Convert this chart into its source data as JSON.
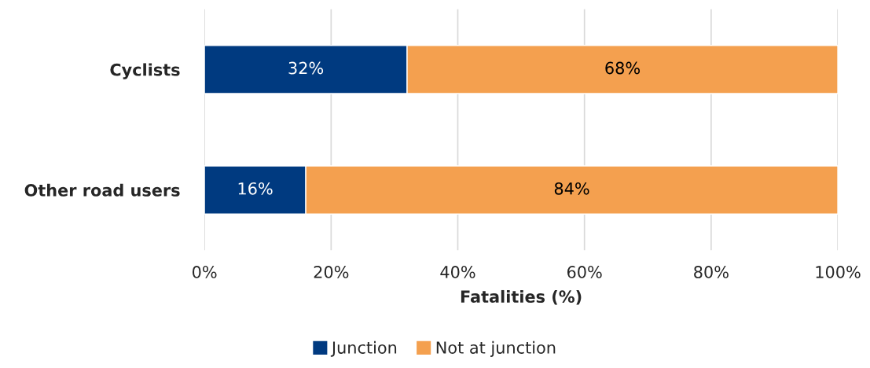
{
  "chart_data": {
    "type": "bar",
    "orientation": "horizontal",
    "stacked": true,
    "xlabel": "Fatalities (%)",
    "categories": [
      "Cyclists",
      "Other road users"
    ],
    "series": [
      {
        "name": "Junction",
        "color": "#003a80",
        "values": [
          32,
          16
        ],
        "value_labels": [
          "32%",
          "16%"
        ]
      },
      {
        "name": "Not at junction",
        "color": "#f4a04f",
        "values": [
          68,
          84
        ],
        "value_labels": [
          "68%",
          "84%"
        ]
      }
    ],
    "xlim": [
      0,
      100
    ],
    "xticks": [
      {
        "value": 0,
        "label": "0%"
      },
      {
        "value": 20,
        "label": "20%"
      },
      {
        "value": 40,
        "label": "40%"
      },
      {
        "value": 60,
        "label": "60%"
      },
      {
        "value": 80,
        "label": "80%"
      },
      {
        "value": 100,
        "label": "100%"
      }
    ],
    "grid": "x",
    "legend": "bottom"
  }
}
